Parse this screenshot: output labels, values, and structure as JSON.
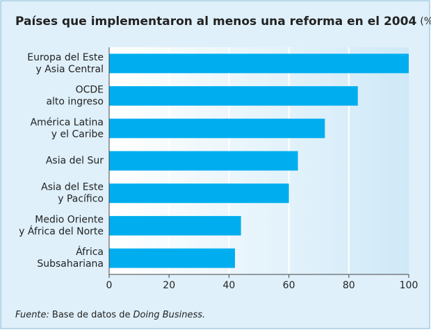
{
  "chart_data": {
    "type": "barh",
    "title": "Países que implementaron al menos una reforma en el 2004",
    "title_unit": "(%)",
    "categories": [
      [
        "Europa del Este",
        "y Asia Central"
      ],
      [
        "OCDE",
        "alto ingreso"
      ],
      [
        "América Latina",
        "y el Caribe"
      ],
      [
        "Asia del Sur"
      ],
      [
        "Asia del Este",
        "y Pacífico"
      ],
      [
        "Medio Oriente",
        "y África del Norte"
      ],
      [
        "África",
        "Subsahariana"
      ]
    ],
    "values": [
      100,
      83,
      72,
      63,
      60,
      44,
      42
    ],
    "color": "#00aeef",
    "xlim": [
      0,
      100
    ],
    "xticks": [
      0,
      20,
      40,
      60,
      80,
      100
    ],
    "grid": true,
    "source_label": "Fuente:",
    "source_text": "Base de datos de",
    "source_italic": "Doing Business."
  }
}
